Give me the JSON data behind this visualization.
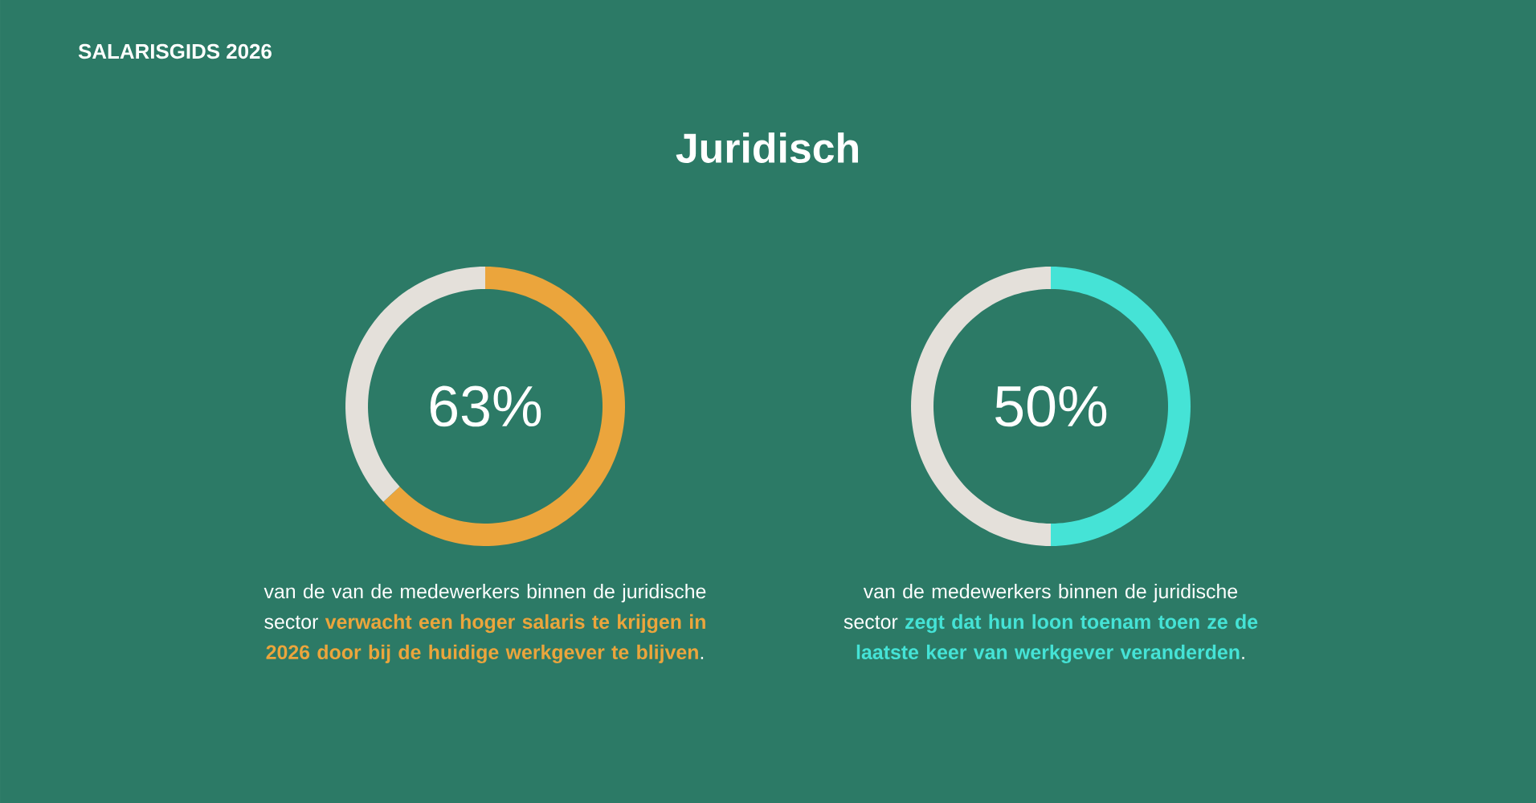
{
  "chart_data": [
    {
      "type": "donut",
      "title": "Juridisch",
      "categories": [
        null,
        null
      ],
      "values": [
        63,
        37
      ],
      "colors": [
        "#eba53c",
        "#e4e0da"
      ],
      "value_labels": [
        "63%",
        null
      ],
      "annotations": [
        "SALARISGIDS 2026",
        "van de van de medewerkers binnen de juridische sector **verwacht een hoger salaris te krijgen in 2026 door bij de huidige werkgever te blijven**."
      ]
    },
    {
      "type": "donut",
      "categories": [
        null,
        null
      ],
      "values": [
        50,
        50
      ],
      "colors": [
        "#45e3d6",
        "#e4e0da"
      ],
      "value_labels": [
        "50%",
        null
      ],
      "annotations": [
        "van de medewerkers binnen de juridische sector **zegt dat hun loon toenam toen ze de laatste keer van werkgever veranderden**."
      ]
    }
  ]
}
